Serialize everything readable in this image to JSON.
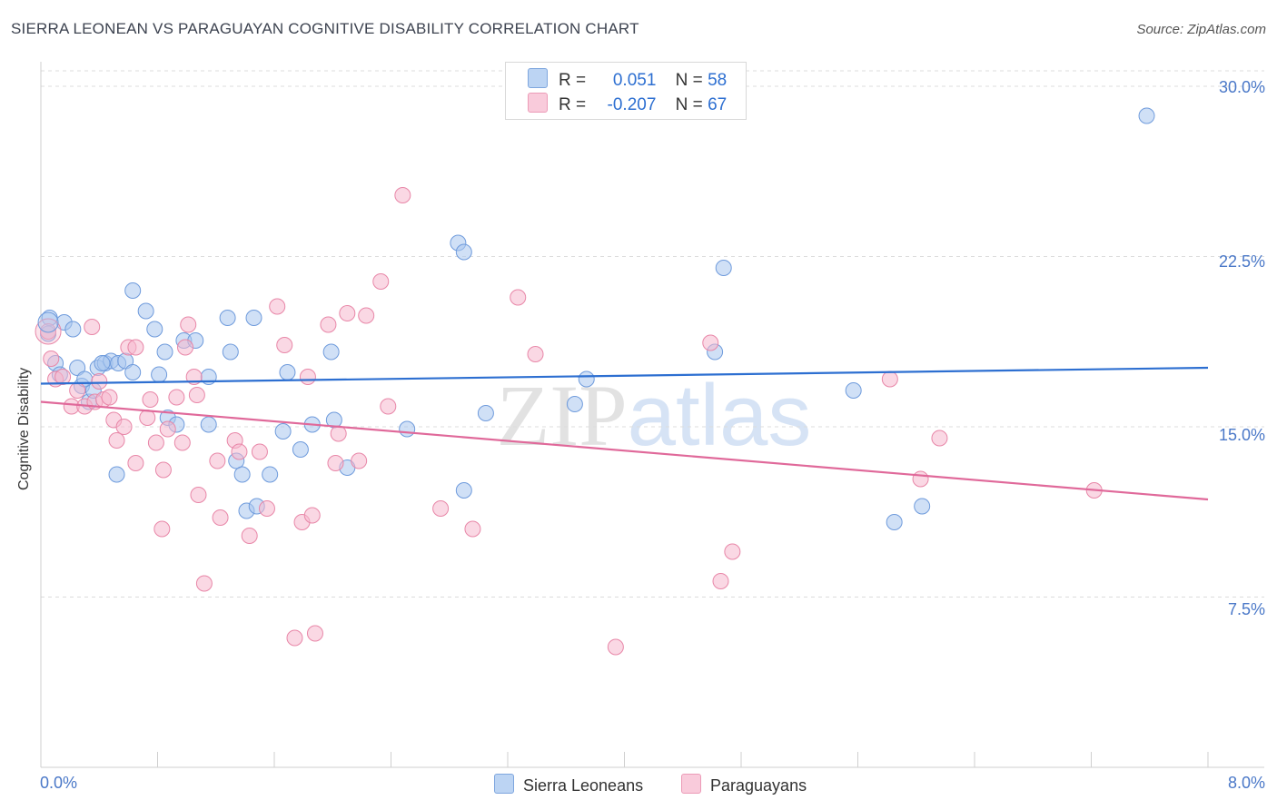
{
  "chart_data": {
    "type": "scatter",
    "title": "SIERRA LEONEAN VS PARAGUAYAN COGNITIVE DISABILITY CORRELATION CHART",
    "source": "Source: ZipAtlas.com",
    "xlabel": "",
    "ylabel": "Cognitive Disability",
    "xlim": [
      0,
      8
    ],
    "ylim": [
      0,
      31
    ],
    "x_tick_labels": [
      "0.0%",
      "8.0%"
    ],
    "y_ticks": [
      7.5,
      15.0,
      22.5,
      30.0
    ],
    "y_tick_labels": [
      "7.5%",
      "15.0%",
      "22.5%",
      "30.0%"
    ],
    "watermark": "ZIPatlas",
    "legend": {
      "rows": [
        {
          "r_label": "R =",
          "r_value": "0.051",
          "n_label": "N =",
          "n_value": "58"
        },
        {
          "r_label": "R =",
          "r_value": "-0.207",
          "n_label": "N =",
          "n_value": "67"
        }
      ]
    },
    "series": [
      {
        "name": "Sierra Leoneans",
        "color": "#a9c7ef",
        "stroke": "#6f9bdc",
        "line_color": "#2d6fd1",
        "trend": {
          "x0": 0.0,
          "y0": 16.9,
          "x1": 8.0,
          "y1": 17.6
        },
        "points": [
          [
            0.06,
            19.8
          ],
          [
            0.05,
            19.1
          ],
          [
            0.1,
            17.8
          ],
          [
            0.13,
            17.3
          ],
          [
            0.16,
            19.6
          ],
          [
            0.22,
            19.3
          ],
          [
            0.25,
            17.6
          ],
          [
            0.28,
            16.8
          ],
          [
            0.33,
            16.1
          ],
          [
            0.36,
            16.6
          ],
          [
            0.39,
            17.6
          ],
          [
            0.44,
            17.8
          ],
          [
            0.48,
            17.9
          ],
          [
            0.53,
            17.8
          ],
          [
            0.58,
            17.9
          ],
          [
            0.63,
            17.4
          ],
          [
            0.52,
            12.9
          ],
          [
            0.63,
            21.0
          ],
          [
            0.72,
            20.1
          ],
          [
            0.78,
            19.3
          ],
          [
            0.81,
            17.3
          ],
          [
            0.85,
            18.3
          ],
          [
            0.87,
            15.4
          ],
          [
            0.93,
            15.1
          ],
          [
            0.98,
            18.8
          ],
          [
            1.06,
            18.8
          ],
          [
            1.15,
            15.1
          ],
          [
            1.15,
            17.2
          ],
          [
            1.28,
            19.8
          ],
          [
            1.3,
            18.3
          ],
          [
            1.34,
            13.5
          ],
          [
            1.38,
            12.9
          ],
          [
            1.41,
            11.3
          ],
          [
            1.46,
            19.8
          ],
          [
            1.48,
            11.5
          ],
          [
            1.57,
            12.9
          ],
          [
            1.66,
            14.8
          ],
          [
            1.69,
            17.4
          ],
          [
            1.78,
            14.0
          ],
          [
            1.86,
            15.1
          ],
          [
            1.99,
            18.3
          ],
          [
            2.01,
            15.3
          ],
          [
            2.1,
            13.2
          ],
          [
            2.51,
            14.9
          ],
          [
            2.86,
            23.1
          ],
          [
            2.9,
            22.7
          ],
          [
            2.9,
            12.2
          ],
          [
            3.05,
            15.6
          ],
          [
            3.66,
            16.0
          ],
          [
            3.74,
            17.1
          ],
          [
            4.62,
            18.3
          ],
          [
            4.68,
            22.0
          ],
          [
            5.57,
            16.6
          ],
          [
            5.85,
            10.8
          ],
          [
            6.04,
            11.5
          ],
          [
            7.58,
            28.7
          ],
          [
            0.3,
            17.1
          ],
          [
            0.42,
            17.8
          ]
        ]
      },
      {
        "name": "Paraguayans",
        "color": "#f6b8cd",
        "stroke": "#e887a8",
        "line_color": "#e0699a",
        "trend": {
          "x0": 0.0,
          "y0": 16.1,
          "x1": 8.0,
          "y1": 11.8
        },
        "points": [
          [
            0.05,
            19.2
          ],
          [
            0.07,
            18.0
          ],
          [
            0.1,
            17.1
          ],
          [
            0.15,
            17.2
          ],
          [
            0.21,
            15.9
          ],
          [
            0.25,
            16.6
          ],
          [
            0.3,
            15.9
          ],
          [
            0.35,
            19.4
          ],
          [
            0.37,
            16.1
          ],
          [
            0.4,
            17.0
          ],
          [
            0.43,
            16.2
          ],
          [
            0.47,
            16.3
          ],
          [
            0.5,
            15.3
          ],
          [
            0.52,
            14.4
          ],
          [
            0.57,
            15.0
          ],
          [
            0.6,
            18.5
          ],
          [
            0.65,
            18.5
          ],
          [
            0.65,
            13.4
          ],
          [
            0.73,
            15.4
          ],
          [
            0.75,
            16.2
          ],
          [
            0.79,
            14.3
          ],
          [
            0.83,
            10.5
          ],
          [
            0.84,
            13.1
          ],
          [
            0.87,
            14.9
          ],
          [
            0.93,
            16.3
          ],
          [
            0.97,
            14.3
          ],
          [
            0.99,
            18.5
          ],
          [
            1.01,
            19.5
          ],
          [
            1.05,
            17.2
          ],
          [
            1.07,
            16.4
          ],
          [
            1.08,
            12.0
          ],
          [
            1.12,
            8.1
          ],
          [
            1.21,
            13.5
          ],
          [
            1.23,
            11.0
          ],
          [
            1.33,
            14.4
          ],
          [
            1.36,
            13.9
          ],
          [
            1.43,
            10.2
          ],
          [
            1.5,
            13.9
          ],
          [
            1.55,
            11.4
          ],
          [
            1.62,
            20.3
          ],
          [
            1.67,
            18.6
          ],
          [
            1.74,
            5.7
          ],
          [
            1.79,
            10.8
          ],
          [
            1.83,
            17.2
          ],
          [
            1.86,
            11.1
          ],
          [
            1.88,
            5.9
          ],
          [
            1.97,
            19.5
          ],
          [
            2.02,
            13.4
          ],
          [
            2.04,
            14.7
          ],
          [
            2.1,
            20.0
          ],
          [
            2.18,
            13.5
          ],
          [
            2.23,
            19.9
          ],
          [
            2.33,
            21.4
          ],
          [
            2.38,
            15.9
          ],
          [
            2.48,
            25.2
          ],
          [
            2.74,
            11.4
          ],
          [
            2.96,
            10.5
          ],
          [
            3.27,
            20.7
          ],
          [
            3.39,
            18.2
          ],
          [
            3.94,
            5.3
          ],
          [
            4.59,
            18.7
          ],
          [
            4.66,
            8.2
          ],
          [
            4.74,
            9.5
          ],
          [
            5.82,
            17.1
          ],
          [
            6.03,
            12.7
          ],
          [
            6.16,
            14.5
          ],
          [
            7.22,
            12.2
          ]
        ]
      }
    ]
  }
}
